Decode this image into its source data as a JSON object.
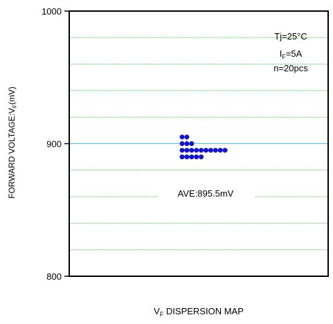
{
  "chart_data": {
    "type": "scatter",
    "title": "",
    "xlabel": {
      "main": "V",
      "sub": "F",
      "rest": " DISPERSION MAP"
    },
    "ylabel": {
      "main": "FORWARD VOLTAGE:V",
      "sub": "F",
      "rest": "(mV)"
    },
    "ylim": [
      800,
      1000
    ],
    "y_ticks": [
      "800",
      "900",
      "1000"
    ],
    "y_tick_values": [
      800,
      900,
      1000
    ],
    "gridlines": [
      820,
      840,
      860,
      880,
      920,
      940,
      960,
      980
    ],
    "grid_style": "dotted",
    "average": 895.5,
    "average_label": "AVE:895.5mV",
    "conditions": {
      "tj": "Tj=25°C",
      "if_main": "I",
      "if_sub": "F",
      "if_rest": "=5A",
      "n": "n=20pcs"
    },
    "dot_stack": [
      {
        "value": 905,
        "count": 2
      },
      {
        "value": 900,
        "count": 3
      },
      {
        "value": 895,
        "count": 10
      },
      {
        "value": 890,
        "count": 5
      }
    ],
    "colors": {
      "dots": "#1414c8",
      "grid": "#33cc33",
      "average_line": "#33ccff",
      "axis": "#000000"
    }
  }
}
